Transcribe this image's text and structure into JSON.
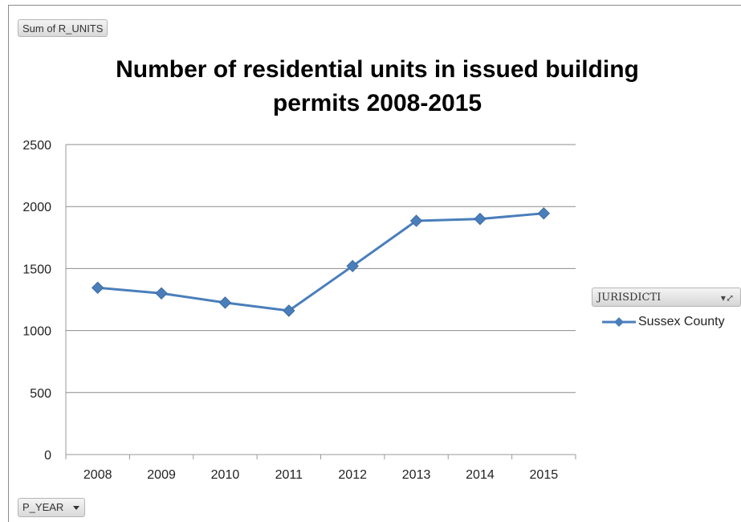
{
  "buttons": {
    "values_field": "Sum of R_UNITS",
    "axis_field": "P_YEAR",
    "legend_field": "JURISDICTI"
  },
  "icons": {
    "axis_dropdown": "chevron-down-icon",
    "legend_filter": "filter-icon"
  },
  "chart_data": {
    "type": "line",
    "title": "Number of residential units in issued building permits 2008-2015",
    "xlabel": "",
    "ylabel": "",
    "categories": [
      "2008",
      "2009",
      "2010",
      "2011",
      "2012",
      "2013",
      "2014",
      "2015"
    ],
    "series": [
      {
        "name": "Sussex County",
        "color": "#4a7ebb",
        "marker": "diamond",
        "values": [
          1345,
          1300,
          1225,
          1160,
          1520,
          1885,
          1900,
          1945
        ]
      }
    ],
    "ylim": [
      0,
      2500
    ],
    "yticks": [
      0,
      500,
      1000,
      1500,
      2000,
      2500
    ],
    "grid": true,
    "legend": "right"
  }
}
